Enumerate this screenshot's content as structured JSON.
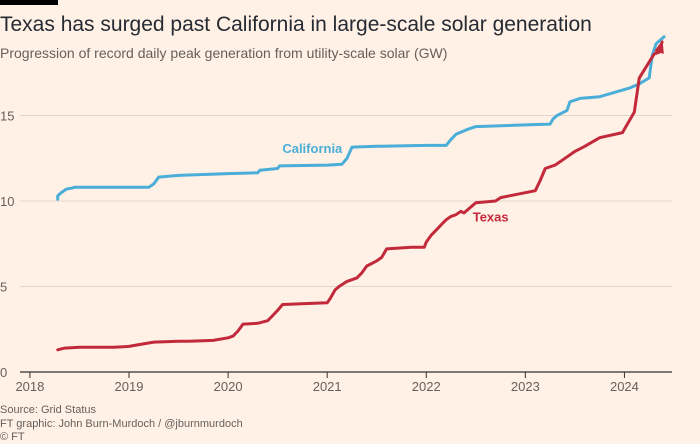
{
  "header": {
    "title": "Texas has surged past California in large-scale solar generation",
    "subtitle": "Progression of record daily peak generation from utility-scale solar (GW)"
  },
  "footer": {
    "source": "Source: Grid Status",
    "credit": "FT graphic: John Burn-Murdoch / @jburnmurdoch",
    "copyright": "© FT"
  },
  "colors": {
    "background": "#fff1e5",
    "california": "#4aaed9",
    "texas": "#c22a3c",
    "grid": "#e3d7cc",
    "axis": "#33302e",
    "text": "#66605c"
  },
  "chart_data": {
    "type": "line",
    "title": "Texas has surged past California in large-scale solar generation",
    "subtitle": "Progression of record daily peak generation from utility-scale solar (GW)",
    "xlabel": "",
    "ylabel": "",
    "xlim": [
      2017.92,
      2024.48
    ],
    "ylim": [
      0,
      20
    ],
    "x_ticks": [
      2018,
      2019,
      2020,
      2021,
      2022,
      2023,
      2024
    ],
    "x_tick_labels": [
      "2018",
      "2019",
      "2020",
      "2021",
      "2022",
      "2023",
      "2024"
    ],
    "y_ticks": [
      0,
      5,
      10,
      15
    ],
    "y_tick_labels": [
      "0",
      "5",
      "10",
      "15"
    ],
    "grid": true,
    "series": [
      {
        "name": "California",
        "label": "California",
        "color": "#4aaed9",
        "x": [
          2018.28,
          2018.28,
          2018.32,
          2018.37,
          2018.42,
          2018.45,
          2019.0,
          2019.2,
          2019.25,
          2019.3,
          2019.5,
          2020.0,
          2020.3,
          2020.32,
          2020.5,
          2020.52,
          2021.0,
          2021.15,
          2021.2,
          2021.25,
          2021.5,
          2022.0,
          2022.2,
          2022.25,
          2022.3,
          2022.42,
          2022.5,
          2023.0,
          2023.25,
          2023.28,
          2023.32,
          2023.42,
          2023.45,
          2023.55,
          2023.75,
          2024.05,
          2024.15,
          2024.25,
          2024.28,
          2024.32,
          2024.4
        ],
        "y": [
          10.1,
          10.3,
          10.5,
          10.7,
          10.75,
          10.8,
          10.8,
          10.8,
          11.0,
          11.4,
          11.5,
          11.6,
          11.65,
          11.8,
          11.9,
          12.05,
          12.1,
          12.15,
          12.5,
          13.15,
          13.2,
          13.25,
          13.25,
          13.6,
          13.9,
          14.2,
          14.35,
          14.45,
          14.5,
          14.8,
          15.0,
          15.3,
          15.8,
          16.0,
          16.1,
          16.6,
          16.85,
          17.2,
          18.5,
          19.2,
          19.6
        ]
      },
      {
        "name": "Texas",
        "label": "Texas",
        "color": "#c22a3c",
        "x": [
          2018.28,
          2018.35,
          2018.5,
          2018.85,
          2019.0,
          2019.1,
          2019.25,
          2019.5,
          2019.6,
          2019.85,
          2020.0,
          2020.05,
          2020.1,
          2020.15,
          2020.3,
          2020.4,
          2020.45,
          2020.5,
          2020.55,
          2021.0,
          2021.03,
          2021.08,
          2021.12,
          2021.2,
          2021.3,
          2021.35,
          2021.4,
          2021.5,
          2021.55,
          2021.6,
          2021.85,
          2021.98,
          2022.0,
          2022.05,
          2022.1,
          2022.15,
          2022.2,
          2022.25,
          2022.3,
          2022.35,
          2022.38,
          2022.5,
          2022.7,
          2022.75,
          2023.1,
          2023.15,
          2023.2,
          2023.3,
          2023.4,
          2023.5,
          2023.6,
          2023.75,
          2023.98,
          2024.0,
          2024.05,
          2024.1,
          2024.15,
          2024.3,
          2024.35,
          2024.38
        ],
        "y": [
          1.3,
          1.4,
          1.45,
          1.45,
          1.5,
          1.6,
          1.75,
          1.8,
          1.8,
          1.85,
          2.0,
          2.1,
          2.4,
          2.8,
          2.85,
          3.0,
          3.3,
          3.6,
          3.95,
          4.05,
          4.3,
          4.8,
          5.0,
          5.3,
          5.5,
          5.8,
          6.2,
          6.5,
          6.7,
          7.2,
          7.3,
          7.3,
          7.6,
          8.0,
          8.3,
          8.6,
          8.9,
          9.1,
          9.2,
          9.4,
          9.3,
          9.9,
          10.0,
          10.2,
          10.6,
          11.2,
          11.9,
          12.1,
          12.5,
          12.9,
          13.2,
          13.7,
          14.0,
          14.2,
          14.7,
          15.2,
          17.2,
          18.6,
          18.7,
          19.3
        ]
      }
    ]
  }
}
